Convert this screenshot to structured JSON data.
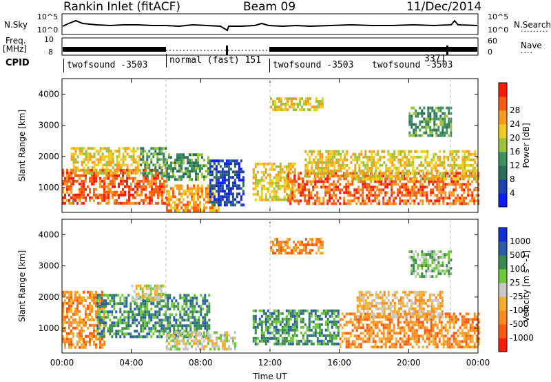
{
  "header": {
    "station": "Rankin Inlet (fitACF)",
    "beam": "Beam 09",
    "date": "11/Dec/2014"
  },
  "top_panels": {
    "nsky_label": "N.Sky",
    "nsearch_label": "N.Search",
    "nsky_ticks": [
      "10^5",
      "10^0"
    ],
    "nsearch_ticks": [
      "10^5",
      "10^0"
    ],
    "freq_label_1": "Freq.",
    "freq_label_2": "[MHz]",
    "freq_ticks": [
      "10",
      "8"
    ],
    "nave_label": "Nave",
    "nave_ticks": [
      "60",
      "0"
    ],
    "cpid_label": "CPID",
    "cpid_segments": [
      {
        "label": "twofsound -3503",
        "start_h": 0,
        "end_h": 6
      },
      {
        "label": "normal (fast) 151",
        "start_h": 6,
        "end_h": 12
      },
      {
        "label": "twofsound -3503",
        "start_h": 12,
        "end_h": 17.5
      },
      {
        "label": "twofsound -3503",
        "start_h": 17.5,
        "end_h": 22.4
      },
      {
        "label": "3371",
        "start_h": 22.4,
        "end_h": 24
      }
    ]
  },
  "colors": {
    "power": [
      "#0a1cff",
      "#1e3fb0",
      "#2c6e58",
      "#3c9060",
      "#9ac33a",
      "#f2cc1a",
      "#fb9a1e",
      "#fa5c10",
      "#ff1a0a"
    ],
    "velocity": [
      "#ff1a0a",
      "#ff5a10",
      "#fb8a20",
      "#f2b030",
      "#c8c8c8",
      "#6cc838",
      "#3a8a50",
      "#2a5ea8",
      "#1030d0"
    ]
  },
  "chart_data": [
    {
      "type": "heatmap",
      "title": "",
      "xlabel": "",
      "ylabel": "Slant Range [km]",
      "xlim": [
        0,
        24
      ],
      "ylim": [
        200,
        4500
      ],
      "x_tick_labels": [
        "00:00",
        "04:00",
        "08:00",
        "12:00",
        "16:00",
        "20:00",
        "00:00"
      ],
      "y_ticks": [
        1000,
        2000,
        3000,
        4000
      ],
      "colorbar_label": "Power [dB]",
      "colorbar_ticks": [
        "4",
        "8",
        "12",
        "16",
        "20",
        "24",
        "28"
      ],
      "regions": [
        {
          "t0": 0,
          "t1": 6,
          "r0": 500,
          "r1": 1600,
          "level": 26
        },
        {
          "t0": 0.5,
          "t1": 4.5,
          "r0": 1500,
          "r1": 2300,
          "level": 18
        },
        {
          "t0": 4.5,
          "t1": 6,
          "r0": 1400,
          "r1": 2300,
          "level": 11
        },
        {
          "t0": 6,
          "t1": 8.5,
          "r0": 1300,
          "r1": 2100,
          "level": 13
        },
        {
          "t0": 6,
          "t1": 9,
          "r0": 250,
          "r1": 1100,
          "level": 22
        },
        {
          "t0": 8.5,
          "t1": 10.5,
          "r0": 400,
          "r1": 1900,
          "level": 5
        },
        {
          "t0": 11,
          "t1": 13.5,
          "r0": 600,
          "r1": 1800,
          "level": 21
        },
        {
          "t0": 12,
          "t1": 15,
          "r0": 3500,
          "r1": 3900,
          "level": 18
        },
        {
          "t0": 13,
          "t1": 24,
          "r0": 500,
          "r1": 1500,
          "level": 28
        },
        {
          "t0": 14,
          "t1": 24,
          "r0": 1300,
          "r1": 2200,
          "level": 20
        },
        {
          "t0": 20,
          "t1": 22.5,
          "r0": 2700,
          "r1": 3600,
          "level": 13
        }
      ]
    },
    {
      "type": "heatmap",
      "title": "",
      "xlabel": "Time UT",
      "ylabel": "Slant Range [km]",
      "xlim": [
        0,
        24
      ],
      "ylim": [
        200,
        4500
      ],
      "x_tick_labels": [
        "00:00",
        "04:00",
        "08:00",
        "12:00",
        "16:00",
        "20:00",
        "00:00"
      ],
      "y_ticks": [
        1000,
        2000,
        3000,
        4000
      ],
      "colorbar_label": "Velocity [m s^-1]",
      "colorbar_ticks": [
        "1000",
        "500",
        "100",
        "25",
        "-25",
        "-100",
        "-500",
        "-1000"
      ],
      "regions": [
        {
          "t0": 0,
          "t1": 2.5,
          "r0": 400,
          "r1": 2200,
          "level": -300
        },
        {
          "t0": 2,
          "t1": 8.5,
          "r0": 700,
          "r1": 2100,
          "level": 250
        },
        {
          "t0": 4,
          "t1": 6,
          "r0": 1900,
          "r1": 2400,
          "level": 0
        },
        {
          "t0": 6,
          "t1": 10,
          "r0": 300,
          "r1": 900,
          "level": 0
        },
        {
          "t0": 11,
          "t1": 16,
          "r0": 500,
          "r1": 1600,
          "level": 200
        },
        {
          "t0": 12,
          "t1": 15,
          "r0": 3400,
          "r1": 3900,
          "level": -150
        },
        {
          "t0": 16,
          "t1": 24,
          "r0": 400,
          "r1": 1500,
          "level": -250
        },
        {
          "t0": 17,
          "t1": 22,
          "r0": 1400,
          "r1": 2200,
          "level": -80
        },
        {
          "t0": 20,
          "t1": 22.5,
          "r0": 2700,
          "r1": 3500,
          "level": 60
        }
      ]
    }
  ]
}
